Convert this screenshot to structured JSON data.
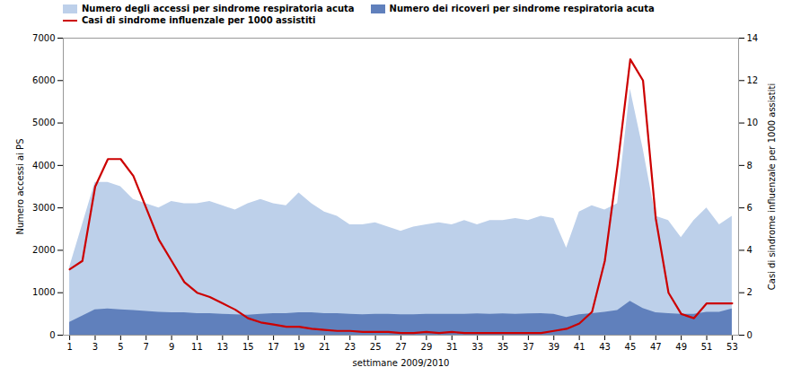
{
  "chart_data": {
    "type": "area",
    "xlabel": "settimane 2009/2010",
    "ylabel": "Numero accessi ai PS",
    "y2label": "Casi di sindrome influenzale per 1000 assistiti",
    "x": [
      1,
      2,
      3,
      4,
      5,
      6,
      7,
      8,
      9,
      10,
      11,
      12,
      13,
      14,
      15,
      16,
      17,
      18,
      19,
      20,
      21,
      22,
      23,
      24,
      25,
      26,
      27,
      28,
      29,
      30,
      31,
      32,
      33,
      34,
      35,
      36,
      37,
      38,
      39,
      40,
      41,
      42,
      43,
      44,
      45,
      46,
      47,
      48,
      49,
      50,
      51,
      52,
      53
    ],
    "xlim": [
      0.5,
      53.5
    ],
    "xticks": [
      1,
      3,
      5,
      7,
      9,
      11,
      13,
      15,
      17,
      19,
      21,
      23,
      25,
      27,
      29,
      31,
      33,
      35,
      37,
      39,
      41,
      43,
      45,
      47,
      49,
      51,
      53
    ],
    "ylim": [
      0,
      7000
    ],
    "yticks": [
      0,
      1000,
      2000,
      3000,
      4000,
      5000,
      6000,
      7000
    ],
    "y2lim": [
      0,
      14
    ],
    "y2ticks": [
      0,
      2,
      4,
      6,
      8,
      10,
      12,
      14
    ],
    "legend": "upper left",
    "series": [
      {
        "name": "Numero degli accessi per sindrome respiratoria acuta",
        "type": "area",
        "color": "#bdd0ea",
        "values": [
          1600,
          2600,
          3600,
          3600,
          3500,
          3200,
          3100,
          3000,
          3150,
          3100,
          3100,
          3150,
          3050,
          2950,
          3100,
          3200,
          3100,
          3050,
          3350,
          3100,
          2900,
          2800,
          2600,
          2600,
          2650,
          2550,
          2450,
          2550,
          2600,
          2650,
          2600,
          2700,
          2600,
          2700,
          2700,
          2750,
          2700,
          2800,
          2750,
          2050,
          2900,
          3050,
          2950,
          3100,
          5800,
          4400,
          2800,
          2700,
          2300,
          2700,
          3000,
          2600,
          2800
        ]
      },
      {
        "name": "Numero dei ricoveri per sindrome respiratoria acuta",
        "type": "area",
        "color": "#6080bc",
        "values": [
          300,
          450,
          600,
          620,
          600,
          580,
          560,
          540,
          530,
          530,
          510,
          510,
          490,
          480,
          470,
          490,
          510,
          510,
          530,
          530,
          510,
          510,
          490,
          480,
          490,
          490,
          480,
          480,
          490,
          490,
          490,
          490,
          500,
          490,
          500,
          490,
          500,
          510,
          490,
          420,
          480,
          510,
          540,
          580,
          800,
          630,
          530,
          510,
          490,
          490,
          540,
          540,
          620
        ]
      },
      {
        "name": "Casi di sindrome influenzale per 1000 assistiti",
        "type": "line",
        "axis": "y2",
        "color": "#cc0000",
        "values": [
          3.1,
          3.5,
          7.0,
          8.3,
          8.3,
          7.5,
          6.0,
          4.5,
          3.5,
          2.5,
          2.0,
          1.8,
          1.5,
          1.2,
          0.8,
          0.6,
          0.5,
          0.4,
          0.4,
          0.3,
          0.25,
          0.2,
          0.2,
          0.15,
          0.15,
          0.15,
          0.1,
          0.1,
          0.15,
          0.1,
          0.15,
          0.1,
          0.1,
          0.1,
          0.1,
          0.1,
          0.1,
          0.1,
          0.2,
          0.3,
          0.55,
          1.1,
          3.5,
          8.0,
          13.0,
          12.0,
          5.5,
          2.0,
          1.0,
          0.8,
          1.5,
          1.5,
          1.5
        ]
      }
    ]
  }
}
